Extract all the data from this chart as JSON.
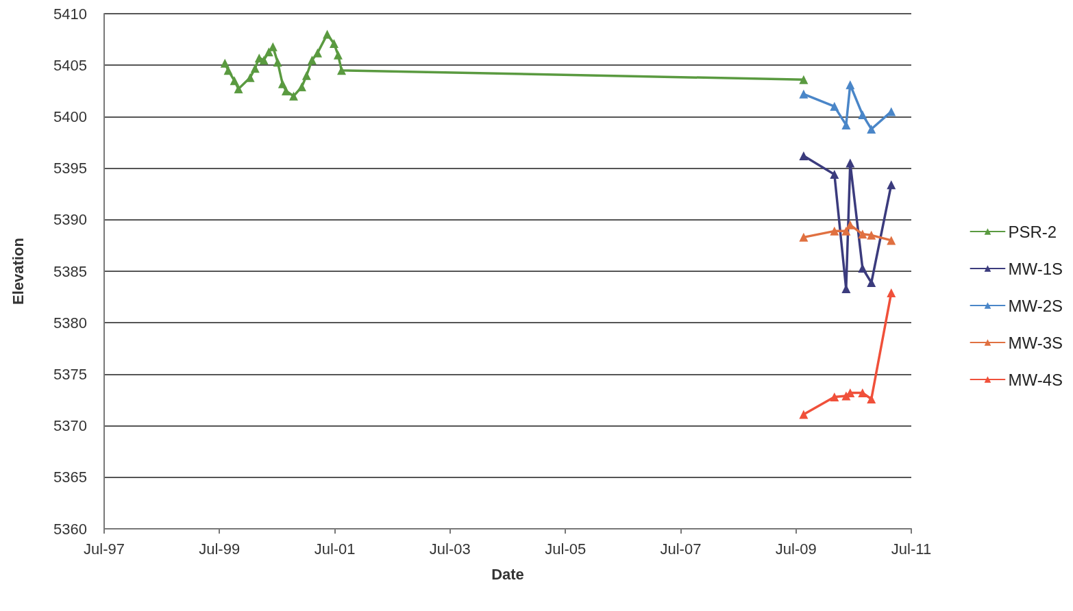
{
  "chart_data": {
    "type": "line",
    "xlabel": "Date",
    "ylabel": "Elevation",
    "xlim": [
      "1997-07-01",
      "2011-07-01"
    ],
    "xticks": [
      {
        "value": "1997-07-01",
        "label": "Jul-97"
      },
      {
        "value": "1999-07-01",
        "label": "Jul-99"
      },
      {
        "value": "2001-07-01",
        "label": "Jul-01"
      },
      {
        "value": "2003-07-01",
        "label": "Jul-03"
      },
      {
        "value": "2005-07-01",
        "label": "Jul-05"
      },
      {
        "value": "2007-07-01",
        "label": "Jul-07"
      },
      {
        "value": "2009-07-01",
        "label": "Jul-09"
      },
      {
        "value": "2011-07-01",
        "label": "Jul-11"
      }
    ],
    "ylim": [
      5360,
      5410
    ],
    "yticks": [
      5360,
      5365,
      5370,
      5375,
      5380,
      5385,
      5390,
      5395,
      5400,
      5405,
      5410
    ],
    "grid": "y",
    "legend": "right",
    "marker": "triangle",
    "line_style": "solid",
    "series": [
      {
        "name": "PSR-2",
        "color": "#5a9a40",
        "x": [
          "1999-08-05",
          "1999-08-26",
          "1999-10-04",
          "1999-10-30",
          "2000-01-12",
          "2000-02-12",
          "2000-03-09",
          "2000-04-08",
          "2000-05-09",
          "2000-06-04",
          "2000-07-04",
          "2000-08-04",
          "2000-08-26",
          "2000-10-13",
          "2000-12-04",
          "2001-01-03",
          "2001-02-07",
          "2001-03-14",
          "2001-05-14",
          "2001-06-26",
          "2001-07-22",
          "2001-08-13",
          "2009-08-18"
        ],
        "values": [
          5405.2,
          5404.5,
          5403.5,
          5402.7,
          5403.8,
          5404.7,
          5405.7,
          5405.5,
          5406.3,
          5406.8,
          5405.3,
          5403.2,
          5402.5,
          5402.0,
          5402.9,
          5404.0,
          5405.5,
          5406.2,
          5408.0,
          5407.1,
          5406.0,
          5404.5,
          5403.6
        ]
      },
      {
        "name": "MW-1S",
        "color": "#3b3b7d",
        "x": [
          "2009-08-18",
          "2010-03-01",
          "2010-05-14",
          "2010-06-09",
          "2010-08-26",
          "2010-10-21",
          "2011-02-24"
        ],
        "values": [
          5396.2,
          5394.4,
          5383.3,
          5395.5,
          5385.3,
          5383.9,
          5393.4
        ]
      },
      {
        "name": "MW-2S",
        "color": "#4a86c8",
        "x": [
          "2009-08-18",
          "2010-03-01",
          "2010-05-14",
          "2010-06-09",
          "2010-08-26",
          "2010-10-21",
          "2011-02-24"
        ],
        "values": [
          5402.2,
          5401.0,
          5399.2,
          5403.1,
          5400.2,
          5398.8,
          5400.5
        ]
      },
      {
        "name": "MW-3S",
        "color": "#e07040",
        "x": [
          "2009-08-18",
          "2010-03-01",
          "2010-05-14",
          "2010-06-09",
          "2010-08-26",
          "2010-10-21",
          "2011-02-24"
        ],
        "values": [
          5388.3,
          5388.9,
          5388.9,
          5389.5,
          5388.6,
          5388.5,
          5388.0
        ]
      },
      {
        "name": "MW-4S",
        "color": "#f0503a",
        "x": [
          "2009-08-18",
          "2010-03-01",
          "2010-05-14",
          "2010-06-09",
          "2010-08-26",
          "2010-10-21",
          "2011-02-24"
        ],
        "values": [
          5371.1,
          5372.8,
          5372.9,
          5373.2,
          5373.2,
          5372.6,
          5382.9
        ]
      }
    ]
  }
}
